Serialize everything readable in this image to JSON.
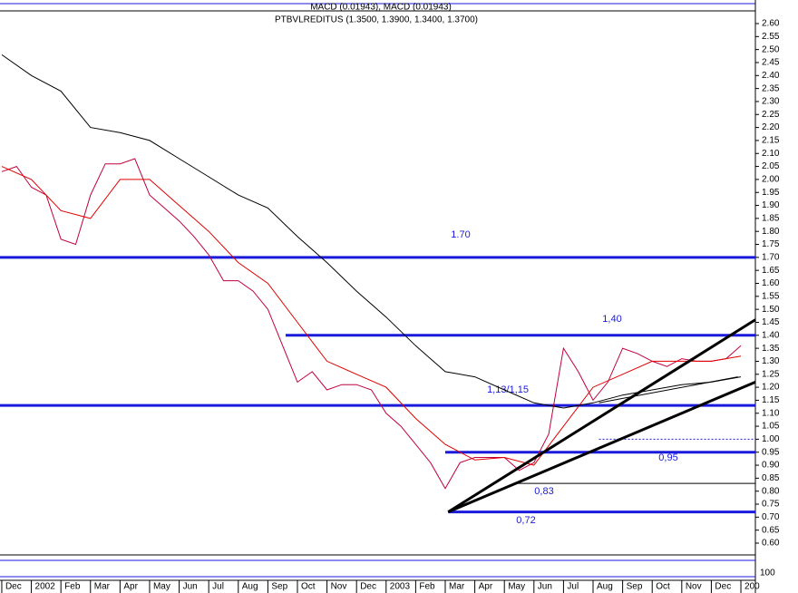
{
  "chart_data": {
    "type": "line",
    "title": "PTBVLREDITUS (1.3500, 1.3900, 1.3400, 1.3700)",
    "upper_panel_title": "MACD (0.01943), MACD (0.01943)",
    "lower_panel_label": "100",
    "xlim": [
      -0.06,
      25.49
    ],
    "ylim": [
      0.6,
      2.6
    ],
    "xticks": [
      {
        "value": 0,
        "label": "Dec"
      },
      {
        "value": 1,
        "label": "2002"
      },
      {
        "value": 2,
        "label": "Feb"
      },
      {
        "value": 3,
        "label": "Mar"
      },
      {
        "value": 4,
        "label": "Apr"
      },
      {
        "value": 5,
        "label": "May"
      },
      {
        "value": 6,
        "label": "Jun"
      },
      {
        "value": 7,
        "label": "Jul"
      },
      {
        "value": 8,
        "label": "Aug"
      },
      {
        "value": 9,
        "label": "Sep"
      },
      {
        "value": 10,
        "label": "Oct"
      },
      {
        "value": 11,
        "label": "Nov"
      },
      {
        "value": 12,
        "label": "Dec"
      },
      {
        "value": 13,
        "label": "2003"
      },
      {
        "value": 14,
        "label": "Feb"
      },
      {
        "value": 15,
        "label": "Mar"
      },
      {
        "value": 16,
        "label": "Apr"
      },
      {
        "value": 17,
        "label": "May"
      },
      {
        "value": 18,
        "label": "Jun"
      },
      {
        "value": 19,
        "label": "Jul"
      },
      {
        "value": 20,
        "label": "Aug"
      },
      {
        "value": 21,
        "label": "Sep"
      },
      {
        "value": 22,
        "label": "Oct"
      },
      {
        "value": 23,
        "label": "Nov"
      },
      {
        "value": 24,
        "label": "Dec"
      },
      {
        "value": 25,
        "label": "200"
      }
    ],
    "yticks": [
      {
        "value": 0.6,
        "label": "0.60"
      },
      {
        "value": 0.65,
        "label": "0.65"
      },
      {
        "value": 0.7,
        "label": "0.70"
      },
      {
        "value": 0.75,
        "label": "0.75"
      },
      {
        "value": 0.8,
        "label": "0.80"
      },
      {
        "value": 0.85,
        "label": "0.85"
      },
      {
        "value": 0.9,
        "label": "0.90"
      },
      {
        "value": 0.95,
        "label": "0.95"
      },
      {
        "value": 1.0,
        "label": "1.00"
      },
      {
        "value": 1.05,
        "label": "1.05"
      },
      {
        "value": 1.1,
        "label": "1.10"
      },
      {
        "value": 1.15,
        "label": "1.15"
      },
      {
        "value": 1.2,
        "label": "1.20"
      },
      {
        "value": 1.25,
        "label": "1.25"
      },
      {
        "value": 1.3,
        "label": "1.30"
      },
      {
        "value": 1.35,
        "label": "1.35"
      },
      {
        "value": 1.4,
        "label": "1.40"
      },
      {
        "value": 1.45,
        "label": "1.45"
      },
      {
        "value": 1.5,
        "label": "1.50"
      },
      {
        "value": 1.55,
        "label": "1.55"
      },
      {
        "value": 1.6,
        "label": "1.60"
      },
      {
        "value": 1.65,
        "label": "1.65"
      },
      {
        "value": 1.7,
        "label": "1.70"
      },
      {
        "value": 1.75,
        "label": "1.75"
      },
      {
        "value": 1.8,
        "label": "1.80"
      },
      {
        "value": 1.85,
        "label": "1.85"
      },
      {
        "value": 1.9,
        "label": "1.90"
      },
      {
        "value": 1.95,
        "label": "1.95"
      },
      {
        "value": 2.0,
        "label": "2.00"
      },
      {
        "value": 2.05,
        "label": "2.05"
      },
      {
        "value": 2.1,
        "label": "2.10"
      },
      {
        "value": 2.15,
        "label": "2.15"
      },
      {
        "value": 2.2,
        "label": "2.20"
      },
      {
        "value": 2.25,
        "label": "2.25"
      },
      {
        "value": 2.3,
        "label": "2.30"
      },
      {
        "value": 2.35,
        "label": "2.35"
      },
      {
        "value": 2.4,
        "label": "2.40"
      },
      {
        "value": 2.45,
        "label": "2.45"
      },
      {
        "value": 2.5,
        "label": "2.50"
      },
      {
        "value": 2.55,
        "label": "2.55"
      },
      {
        "value": 2.6,
        "label": "2.60"
      }
    ],
    "series": [
      {
        "color": "#c0003c",
        "x": [
          0,
          0.5,
          1,
          1.5,
          2,
          2.5,
          3,
          3.5,
          4,
          4.5,
          5,
          5.5,
          6,
          6.5,
          7,
          7.5,
          8,
          8.5,
          9,
          9.5,
          10,
          10.5,
          11,
          11.5,
          12,
          12.5,
          13,
          13.5,
          14,
          14.5,
          15,
          15.5,
          16,
          16.5,
          17,
          17.5,
          18,
          18.5,
          19,
          19.5,
          20,
          20.5,
          21,
          21.5,
          22,
          22.5,
          23,
          23.5,
          24,
          24.5,
          25
        ],
        "values": [
          2.03,
          2.05,
          1.97,
          1.94,
          1.77,
          1.75,
          1.94,
          2.06,
          2.06,
          2.08,
          1.94,
          1.89,
          1.84,
          1.78,
          1.71,
          1.61,
          1.61,
          1.57,
          1.5,
          1.36,
          1.22,
          1.26,
          1.19,
          1.21,
          1.21,
          1.19,
          1.1,
          1.05,
          0.98,
          0.91,
          0.81,
          0.91,
          0.93,
          0.93,
          0.93,
          0.88,
          0.91,
          1.02,
          1.35,
          1.26,
          1.15,
          1.22,
          1.35,
          1.33,
          1.3,
          1.28,
          1.31,
          1.3,
          1.3,
          1.31,
          1.36
        ]
      },
      {
        "color": "#e00000",
        "x": [
          0,
          1,
          2,
          3,
          4,
          5,
          6,
          7,
          8,
          9,
          10,
          11,
          12,
          13,
          14,
          15,
          16,
          17,
          18,
          19,
          20,
          21,
          22,
          23,
          24,
          25
        ],
        "values": [
          2.05,
          2.0,
          1.88,
          1.85,
          2.0,
          2.0,
          1.9,
          1.8,
          1.68,
          1.6,
          1.45,
          1.3,
          1.25,
          1.2,
          1.08,
          0.98,
          0.92,
          0.93,
          0.9,
          1.05,
          1.2,
          1.25,
          1.3,
          1.3,
          1.3,
          1.32
        ]
      },
      {
        "color": "#000000",
        "x": [
          0,
          1,
          2,
          3,
          4,
          5,
          6,
          7,
          8,
          9,
          10,
          11,
          12,
          13,
          14,
          15,
          16,
          17,
          18,
          19,
          20,
          21,
          22,
          23,
          24,
          25
        ],
        "values": [
          2.48,
          2.4,
          2.34,
          2.2,
          2.18,
          2.15,
          2.08,
          2.01,
          1.94,
          1.89,
          1.78,
          1.68,
          1.57,
          1.47,
          1.36,
          1.26,
          1.24,
          1.19,
          1.14,
          1.12,
          1.14,
          1.17,
          1.19,
          1.21,
          1.22,
          1.24
        ]
      }
    ],
    "levels": [
      {
        "value": 1.7,
        "label": "1.70",
        "color": "#1a1adc"
      },
      {
        "value": 1.4,
        "label": "1,40",
        "color": "#1a1adc",
        "start": 9.6
      },
      {
        "value": 1.13,
        "label": "1,13/1,15",
        "color": "#1a1adc"
      },
      {
        "value": 1.0,
        "color": "#1a1adc",
        "start": 20.2,
        "dash": true
      },
      {
        "value": 0.95,
        "label": "0,95",
        "color": "#1a1adc",
        "start": 15.0
      },
      {
        "value": 0.83,
        "label": "0,83",
        "color": "#000000",
        "start": 17.4
      },
      {
        "value": 0.72,
        "label": "0,72",
        "color": "#1a1adc",
        "start": 15.1
      }
    ],
    "trendlines": [
      {
        "x": [
          15.1,
          25.49
        ],
        "values": [
          0.72,
          1.46
        ]
      },
      {
        "x": [
          15.1,
          25.49
        ],
        "values": [
          0.72,
          1.22
        ]
      },
      {
        "x": [
          20.2,
          24.9
        ],
        "values": [
          1.14,
          1.24
        ],
        "thin": true
      }
    ]
  }
}
